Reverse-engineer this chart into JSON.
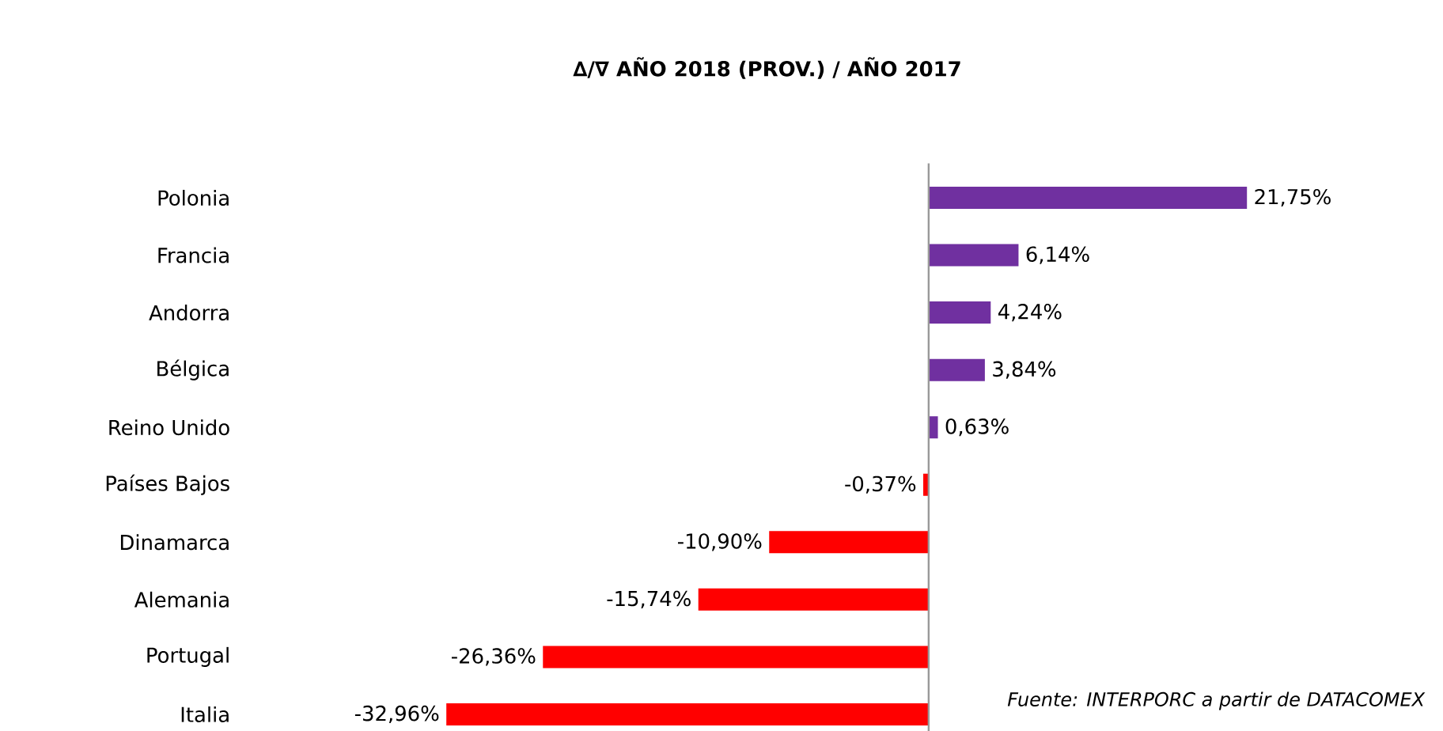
{
  "chart_data": {
    "type": "bar",
    "orientation": "horizontal",
    "title": "∆/∇  AÑO 2018 (PROV.) / AÑO 2017",
    "categories": [
      "Polonia",
      "Francia",
      "Andorra",
      "Bélgica",
      "Reino Unido",
      "Países Bajos",
      "Dinamarca",
      "Alemania",
      "Portugal",
      "Italia"
    ],
    "values": [
      21.75,
      6.14,
      4.24,
      3.84,
      0.63,
      -0.37,
      -10.9,
      -15.74,
      -26.36,
      -32.96
    ],
    "value_labels": [
      "21,75%",
      "6,14%",
      "4,24%",
      "3,84%",
      "0,63%",
      "-0,37%",
      "-10,90%",
      "-15,74%",
      "-26,36%",
      "-32,96%"
    ],
    "colors": [
      "#7030a0",
      "#7030a0",
      "#7030a0",
      "#7030a0",
      "#7030a0",
      "#ff0000",
      "#ff0000",
      "#ff0000",
      "#ff0000",
      "#ff0000"
    ],
    "tick_labels": "y",
    "annotations": [
      "Fuente: INTERPORC  a partir de DATACOMEX"
    ]
  }
}
